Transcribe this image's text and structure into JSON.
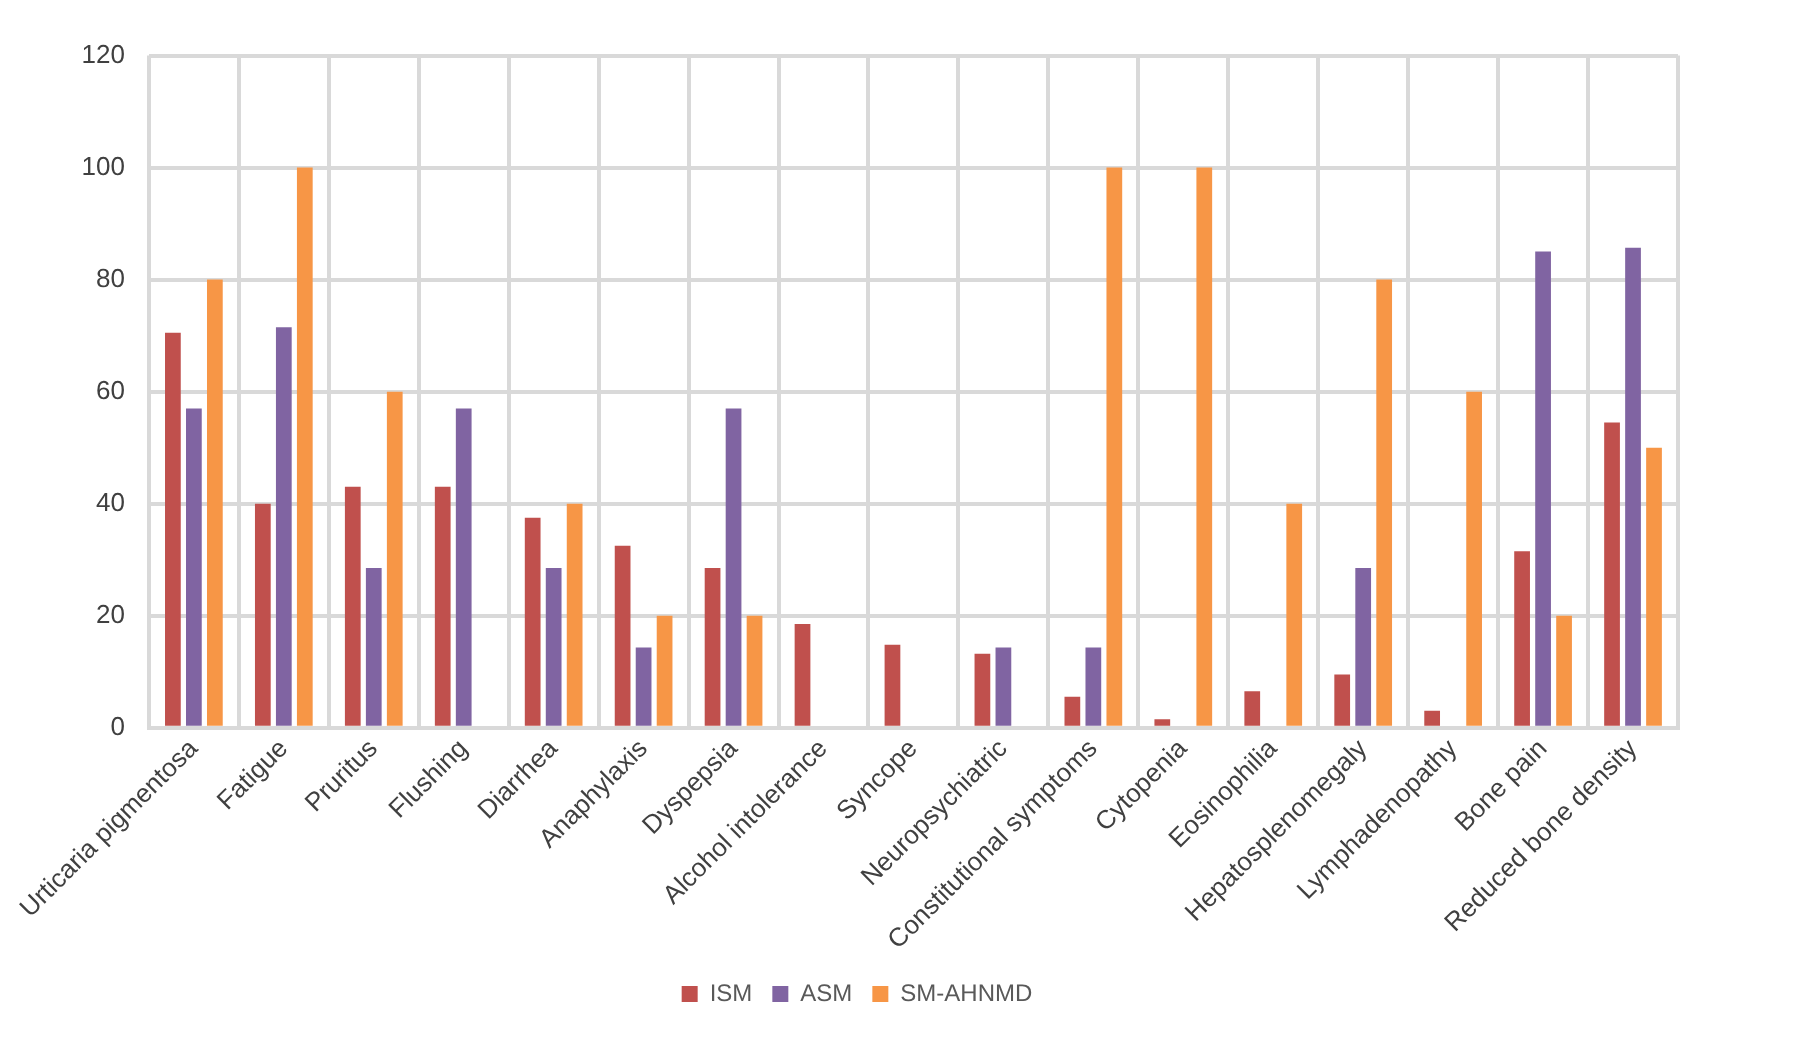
{
  "chart_data": {
    "type": "bar",
    "categories": [
      "Urticaria pigmentosa",
      "Fatigue",
      "Pruritus",
      "Flushing",
      "Diarrhea",
      "Anaphylaxis",
      "Dyspepsia",
      "Alcohol intolerance",
      "Syncope",
      "Neuropsychiatric",
      "Constitutional symptoms",
      "Cytopenia",
      "Eosinophilia",
      "Hepatosplenomegaly",
      "Lymphadenopathy",
      "Bone pain",
      "Reduced bone density"
    ],
    "series": [
      {
        "name": "ISM",
        "color": "#c0504d",
        "values": [
          70.5,
          40,
          43,
          43,
          37.5,
          32.5,
          28.5,
          18.5,
          14.8,
          13.2,
          5.5,
          1.5,
          6.5,
          9.5,
          3,
          31.5,
          54.5
        ]
      },
      {
        "name": "ASM",
        "color": "#8064a2",
        "values": [
          57,
          71.5,
          28.5,
          57,
          28.5,
          14.3,
          57,
          null,
          null,
          14.3,
          14.3,
          null,
          null,
          28.5,
          null,
          85,
          85.7
        ]
      },
      {
        "name": "SM-AHNMD",
        "color": "#f79646",
        "values": [
          80,
          100,
          60,
          null,
          40,
          20,
          20,
          null,
          null,
          null,
          100,
          100,
          40,
          80,
          60,
          20,
          50
        ]
      }
    ],
    "ylim": [
      0,
      120
    ],
    "yticks": [
      0,
      20,
      40,
      60,
      80,
      100,
      120
    ],
    "grid": true,
    "legend": "bottom"
  }
}
